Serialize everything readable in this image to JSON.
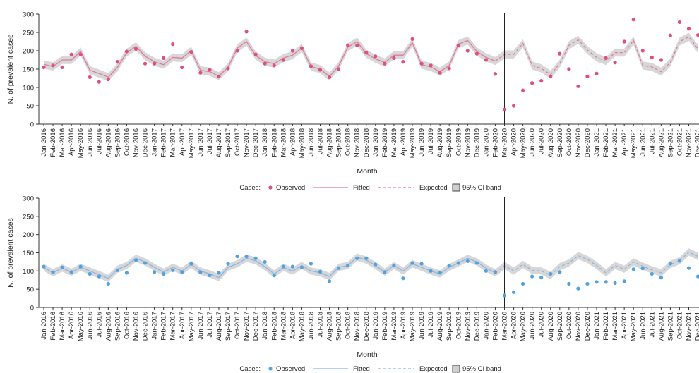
{
  "chart_data": [
    {
      "type": "line",
      "ylabel": "N. of prevalent cases",
      "xlabel": "Month",
      "ylim": [
        0,
        300
      ],
      "yticks": [
        0,
        50,
        100,
        150,
        200,
        250,
        300
      ],
      "grid": false,
      "legend": {
        "position": "bottom",
        "title": "Cases:",
        "entries": [
          "Observed",
          "Fitted",
          "Expected",
          "95% CI band"
        ]
      },
      "intervention_at": "Mar-2020",
      "color": "#e07b9b",
      "marker_color": "#e0507d",
      "months": [
        "Jan-2016",
        "Feb-2016",
        "Mar-2016",
        "Apr-2016",
        "May-2016",
        "Jun-2016",
        "Jul-2016",
        "Aug-2016",
        "Sep-2016",
        "Oct-2016",
        "Nov-2016",
        "Dec-2016",
        "Jan-2017",
        "Feb-2017",
        "Mar-2017",
        "Apr-2017",
        "May-2017",
        "Jun-2017",
        "Jul-2017",
        "Aug-2017",
        "Sep-2017",
        "Oct-2017",
        "Nov-2017",
        "Dec-2017",
        "Jan-2018",
        "Feb-2018",
        "Mar-2018",
        "Apr-2018",
        "May-2018",
        "Jun-2018",
        "Jul-2018",
        "Aug-2018",
        "Sep-2018",
        "Oct-2018",
        "Nov-2018",
        "Dec-2018",
        "Jan-2019",
        "Feb-2019",
        "Mar-2019",
        "Apr-2019",
        "May-2019",
        "Jun-2019",
        "Jul-2019",
        "Aug-2019",
        "Sep-2019",
        "Oct-2019",
        "Nov-2019",
        "Dec-2019",
        "Jan-2020",
        "Feb-2020",
        "Mar-2020",
        "Apr-2020",
        "May-2020",
        "Jun-2020",
        "Jul-2020",
        "Aug-2020",
        "Sep-2020",
        "Oct-2020",
        "Nov-2020",
        "Dec-2020",
        "Jan-2021",
        "Feb-2021",
        "Mar-2021",
        "Apr-2021",
        "May-2021",
        "Jun-2021",
        "Jul-2021",
        "Aug-2021",
        "Sep-2021",
        "Oct-2021",
        "Nov-2021",
        "Dec-2021"
      ],
      "observed": [
        155,
        160,
        155,
        190,
        190,
        128,
        115,
        122,
        170,
        198,
        205,
        165,
        165,
        180,
        218,
        155,
        197,
        140,
        148,
        130,
        152,
        200,
        252,
        190,
        165,
        160,
        175,
        200,
        207,
        158,
        148,
        128,
        150,
        215,
        215,
        195,
        185,
        165,
        180,
        170,
        232,
        165,
        160,
        140,
        152,
        215,
        200,
        192,
        175,
        137,
        40,
        50,
        92,
        112,
        118,
        130,
        192,
        150,
        103,
        130,
        138,
        180,
        168,
        225,
        285,
        200,
        182,
        175,
        242,
        278,
        260,
        243
      ],
      "fitted": [
        163,
        157,
        175,
        175,
        198,
        147,
        138,
        128,
        155,
        195,
        212,
        185,
        170,
        162,
        182,
        180,
        200,
        147,
        143,
        131,
        155,
        207,
        225,
        187,
        170,
        165,
        180,
        188,
        208,
        157,
        150,
        130,
        158,
        210,
        225,
        192,
        178,
        168,
        188,
        188,
        222,
        162,
        156,
        143,
        160,
        218,
        228,
        198,
        182,
        172
      ],
      "expected": [
        null,
        null,
        null,
        null,
        null,
        null,
        null,
        null,
        null,
        null,
        null,
        null,
        null,
        null,
        null,
        null,
        null,
        null,
        null,
        null,
        null,
        null,
        null,
        null,
        null,
        null,
        null,
        null,
        null,
        null,
        null,
        null,
        null,
        null,
        null,
        null,
        null,
        null,
        null,
        null,
        null,
        null,
        null,
        null,
        null,
        null,
        null,
        null,
        null,
        172,
        190,
        190,
        220,
        160,
        152,
        135,
        165,
        215,
        230,
        202,
        182,
        172,
        195,
        195,
        228,
        160,
        156,
        143,
        168,
        225,
        238,
        205
      ],
      "ci_half_width": 11
    },
    {
      "type": "line",
      "ylabel": "N. of prevalent cases",
      "xlabel": "Month",
      "ylim": [
        0,
        300
      ],
      "yticks": [
        0,
        50,
        100,
        150,
        200,
        250,
        300
      ],
      "grid": false,
      "legend": {
        "position": "bottom",
        "title": "Cases:",
        "entries": [
          "Observed",
          "Fitted",
          "Expected",
          "95% CI band"
        ]
      },
      "intervention_at": "Mar-2020",
      "color": "#8ab6e6",
      "marker_color": "#4fa3e0",
      "months": [
        "Jan-2016",
        "Feb-2016",
        "Mar-2016",
        "Apr-2016",
        "May-2016",
        "Jun-2016",
        "Jul-2016",
        "Aug-2016",
        "Sep-2016",
        "Oct-2016",
        "Nov-2016",
        "Dec-2016",
        "Jan-2017",
        "Feb-2017",
        "Mar-2017",
        "Apr-2017",
        "May-2017",
        "Jun-2017",
        "Jul-2017",
        "Aug-2017",
        "Sep-2017",
        "Oct-2017",
        "Nov-2017",
        "Dec-2017",
        "Jan-2018",
        "Feb-2018",
        "Mar-2018",
        "Apr-2018",
        "May-2018",
        "Jun-2018",
        "Jul-2018",
        "Aug-2018",
        "Sep-2018",
        "Oct-2018",
        "Nov-2018",
        "Dec-2018",
        "Jan-2019",
        "Feb-2019",
        "Mar-2019",
        "Apr-2019",
        "May-2019",
        "Jun-2019",
        "Jul-2019",
        "Aug-2019",
        "Sep-2019",
        "Oct-2019",
        "Nov-2019",
        "Dec-2019",
        "Jan-2020",
        "Feb-2020",
        "Mar-2020",
        "Apr-2020",
        "May-2020",
        "Jun-2020",
        "Jul-2020",
        "Aug-2020",
        "Sep-2020",
        "Oct-2020",
        "Nov-2020",
        "Dec-2020",
        "Jan-2021",
        "Feb-2021",
        "Mar-2021",
        "Apr-2021",
        "May-2021",
        "Jun-2021",
        "Jul-2021",
        "Aug-2021",
        "Sep-2021",
        "Oct-2021",
        "Nov-2021",
        "Dec-2021"
      ],
      "observed": [
        112,
        96,
        110,
        97,
        112,
        92,
        85,
        65,
        102,
        95,
        130,
        122,
        97,
        92,
        102,
        97,
        120,
        97,
        88,
        95,
        120,
        140,
        140,
        135,
        125,
        88,
        112,
        112,
        110,
        120,
        98,
        72,
        108,
        115,
        135,
        135,
        118,
        97,
        115,
        80,
        122,
        120,
        100,
        95,
        115,
        122,
        127,
        122,
        100,
        97,
        33,
        42,
        65,
        85,
        82,
        92,
        97,
        65,
        52,
        65,
        70,
        70,
        67,
        72,
        105,
        107,
        92,
        82,
        120,
        128,
        108,
        85
      ],
      "fitted": [
        110,
        95,
        108,
        97,
        110,
        100,
        90,
        80,
        105,
        115,
        135,
        125,
        110,
        97,
        110,
        100,
        118,
        100,
        92,
        82,
        110,
        120,
        135,
        128,
        112,
        92,
        110,
        100,
        115,
        100,
        95,
        85,
        110,
        115,
        138,
        130,
        115,
        97,
        115,
        100,
        120,
        110,
        100,
        92,
        110,
        122,
        135,
        125,
        108,
        95
      ],
      "expected": [
        null,
        null,
        null,
        null,
        null,
        null,
        null,
        null,
        null,
        null,
        null,
        null,
        null,
        null,
        null,
        null,
        null,
        null,
        null,
        null,
        null,
        null,
        null,
        null,
        null,
        null,
        null,
        null,
        null,
        null,
        null,
        null,
        null,
        null,
        null,
        null,
        null,
        null,
        null,
        null,
        null,
        null,
        null,
        null,
        null,
        null,
        null,
        null,
        null,
        95,
        115,
        100,
        118,
        102,
        100,
        88,
        112,
        122,
        142,
        132,
        115,
        95,
        115,
        105,
        125,
        113,
        103,
        95,
        118,
        128,
        152,
        140
      ],
      "ci_half_width": 10
    }
  ]
}
